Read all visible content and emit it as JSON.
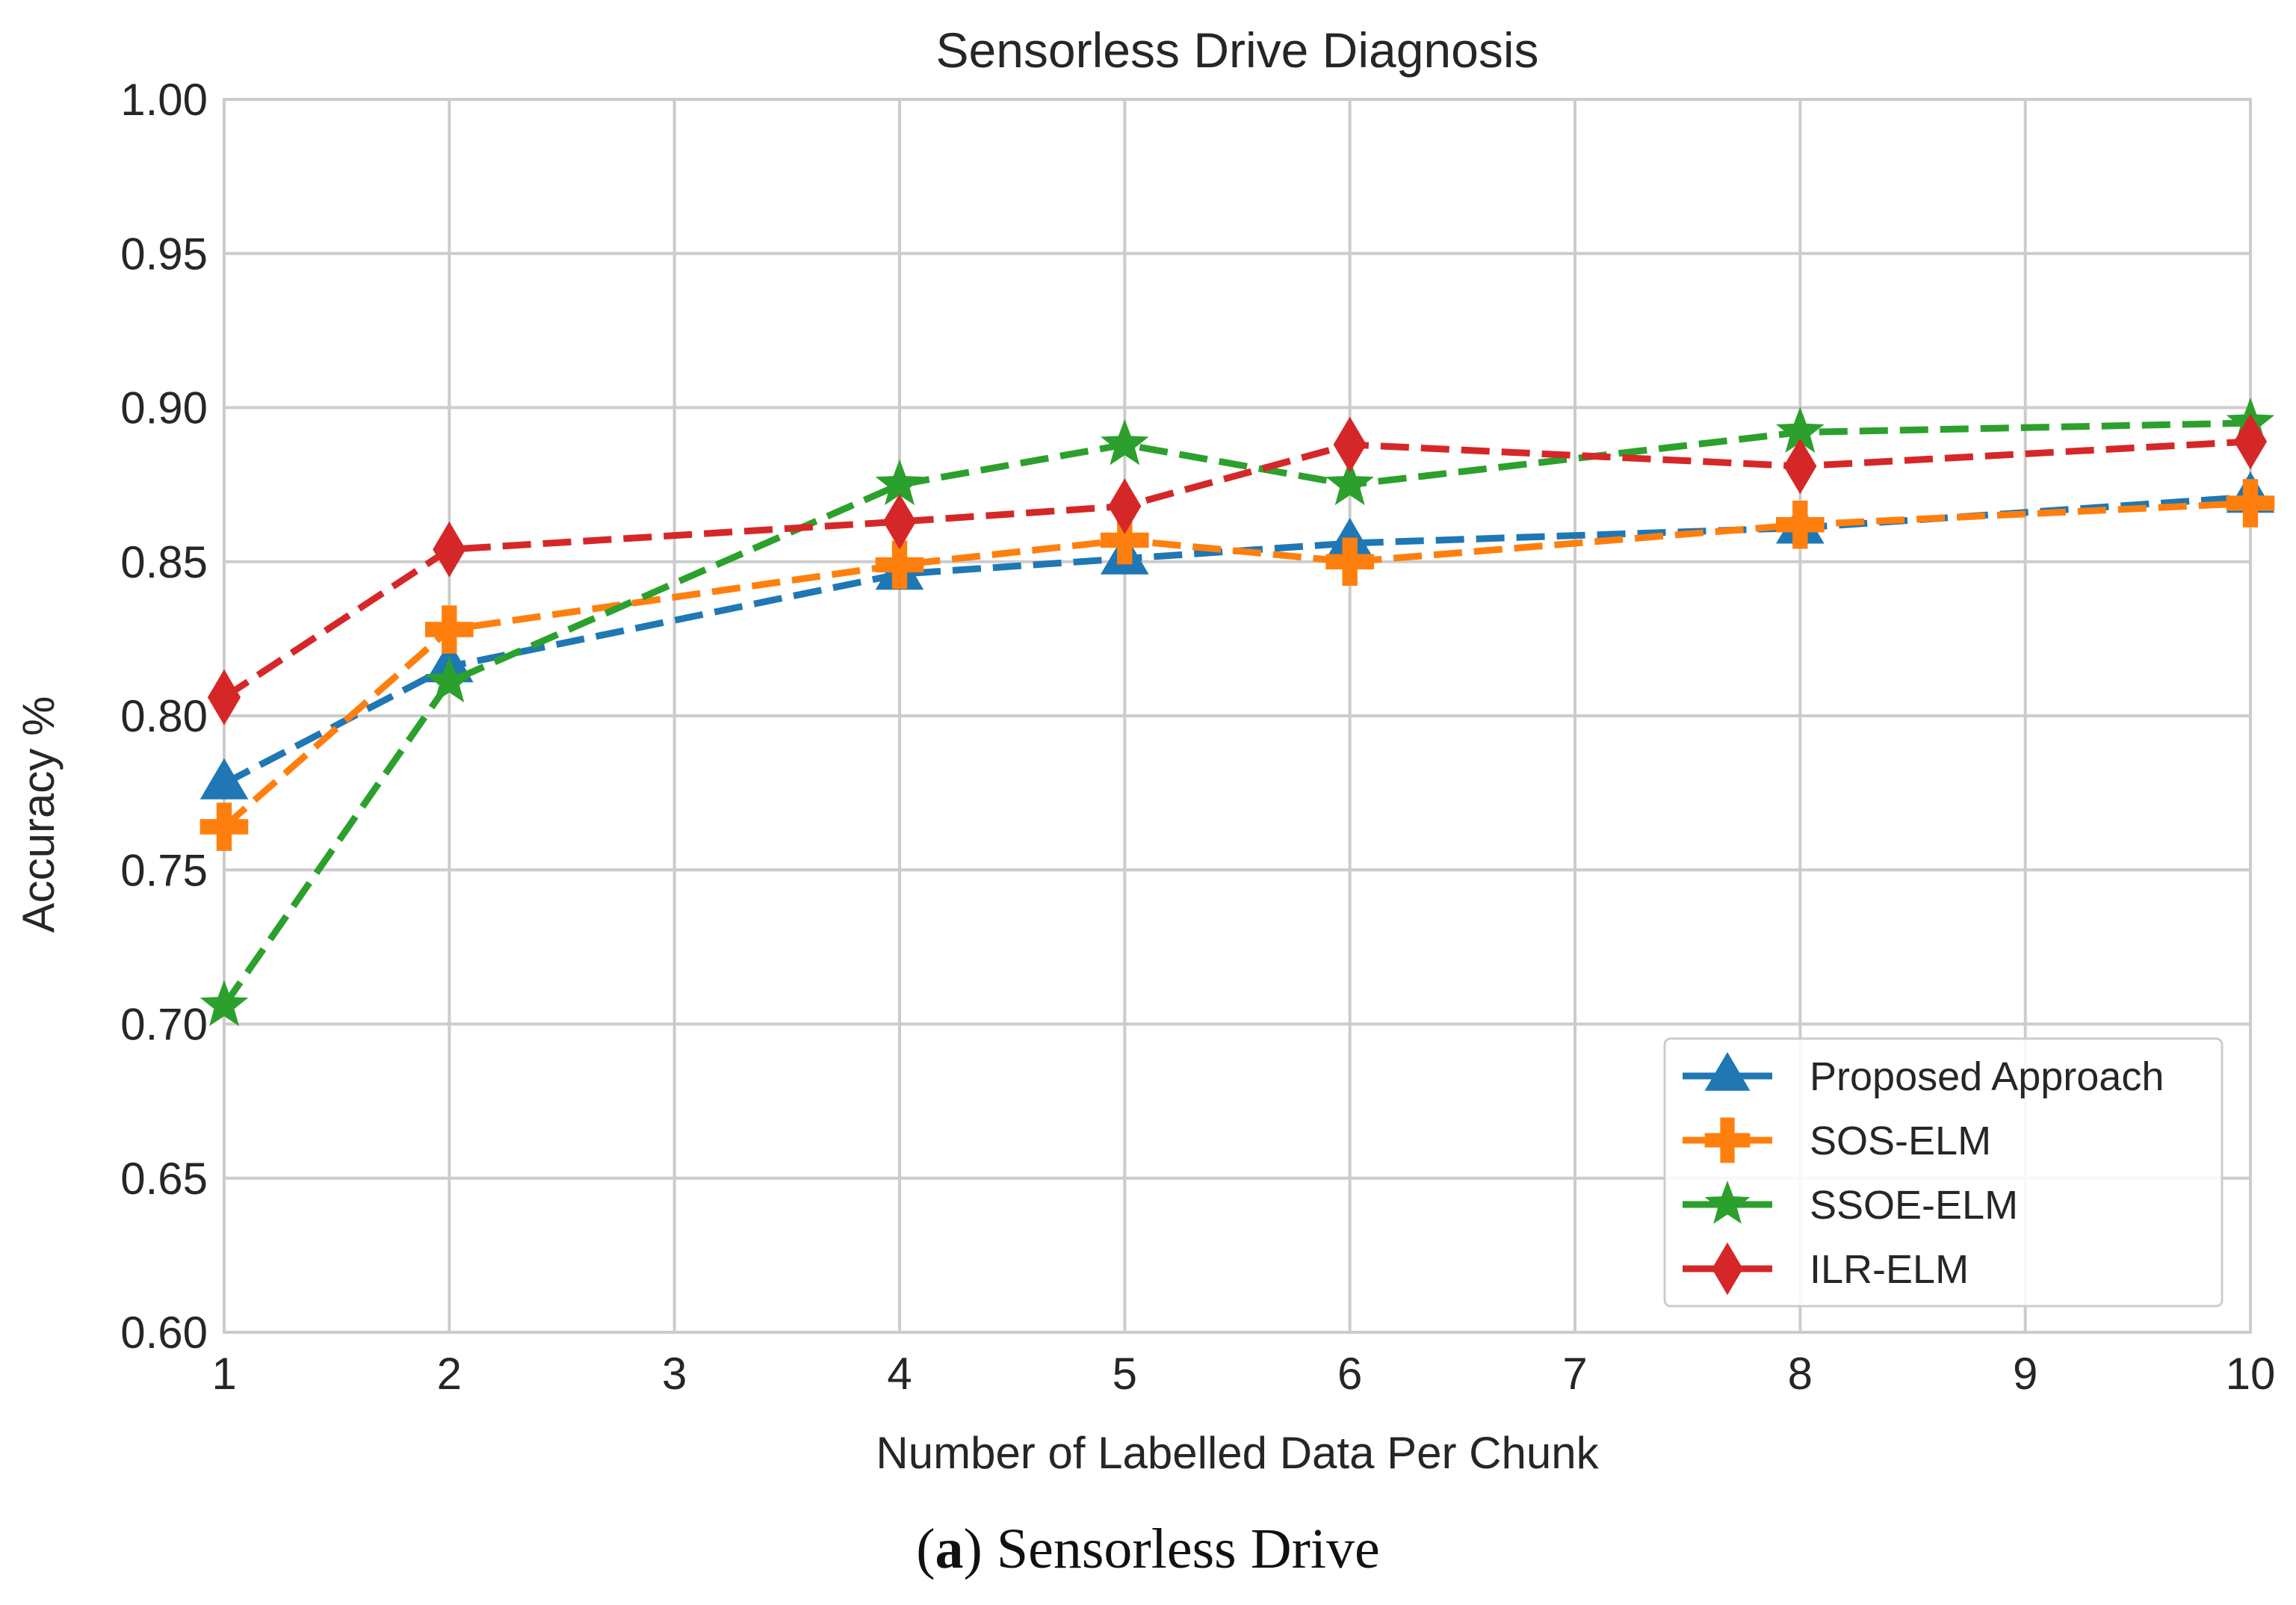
{
  "chart_data": {
    "type": "line",
    "title": "Sensorless Drive Diagnosis",
    "xlabel": "Number of Labelled Data Per Chunk",
    "ylabel": "Accuracy %",
    "xlim": [
      1,
      10
    ],
    "ylim": [
      0.6,
      1.0
    ],
    "xticks": [
      "1",
      "2",
      "3",
      "4",
      "5",
      "6",
      "7",
      "8",
      "9",
      "10"
    ],
    "yticks": [
      "0.60",
      "0.65",
      "0.70",
      "0.75",
      "0.80",
      "0.85",
      "0.90",
      "0.95",
      "1.00"
    ],
    "grid": true,
    "legend_position": "bottom-right",
    "x": [
      1,
      2,
      4,
      5,
      6,
      8,
      10
    ],
    "series": [
      {
        "name": "Proposed Approach",
        "marker": "triangle",
        "color": "#1f77b4",
        "values": [
          0.778,
          0.816,
          0.846,
          0.851,
          0.856,
          0.861,
          0.871
        ]
      },
      {
        "name": "SOS-ELM",
        "marker": "plus",
        "color": "#ff7f0e",
        "values": [
          0.764,
          0.828,
          0.849,
          0.857,
          0.85,
          0.862,
          0.869
        ]
      },
      {
        "name": "SSOE-ELM",
        "marker": "star",
        "color": "#2ca02c",
        "values": [
          0.706,
          0.811,
          0.875,
          0.888,
          0.875,
          0.892,
          0.895
        ]
      },
      {
        "name": "ILR-ELM",
        "marker": "diamond",
        "color": "#d62728",
        "values": [
          0.806,
          0.854,
          0.863,
          0.868,
          0.888,
          0.881,
          0.889
        ]
      }
    ]
  },
  "caption": {
    "label": "a",
    "text": "Sensorless Drive"
  }
}
